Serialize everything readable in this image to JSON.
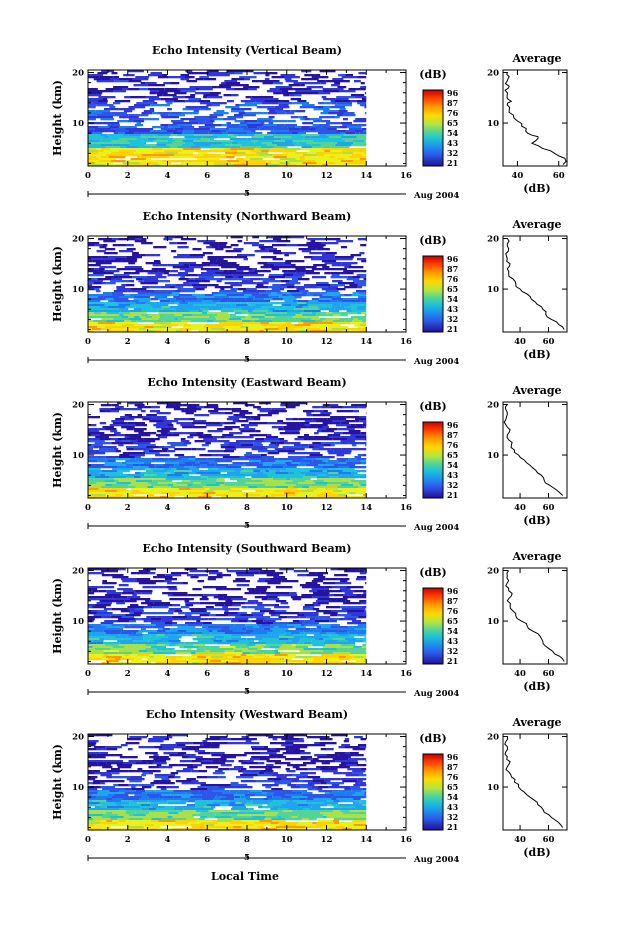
{
  "chart_data": [
    {
      "type": "heatmap",
      "title": "Echo Intensity (Vertical Beam)",
      "ylabel": "Height (km)",
      "xlabel": "",
      "y_ticks": [
        "10",
        "20"
      ],
      "x_ticks": [
        "0",
        "2",
        "4",
        "6",
        "8",
        "10",
        "12",
        "14",
        "16"
      ],
      "date_label": "Aug 2004",
      "date_tick": "5",
      "colorbar_unit": "(dB)",
      "colorbar_ticks": [
        "96",
        "87",
        "76",
        "65",
        "54",
        "43",
        "32",
        "21"
      ],
      "xlim": [
        0,
        16
      ],
      "ylim": [
        1.5,
        20.5
      ],
      "data_end_hour": 14,
      "avg_title": "Average",
      "avg_xlabel": "(dB)",
      "avg_x_ticks": [
        "40",
        "60"
      ],
      "avg_xlim": [
        33,
        64
      ],
      "avg_y_ticks": [
        "10",
        "20"
      ],
      "avg_profile": [
        [
          62,
          1.8
        ],
        [
          63,
          3
        ],
        [
          58,
          4
        ],
        [
          52,
          5
        ],
        [
          47,
          6
        ],
        [
          50,
          7
        ],
        [
          47,
          7.6
        ],
        [
          44,
          8.4
        ],
        [
          42,
          9.4
        ],
        [
          40,
          10.4
        ],
        [
          38,
          11.6
        ],
        [
          36,
          12.6
        ],
        [
          35,
          13.6
        ],
        [
          37,
          14.3
        ],
        [
          35,
          15.4
        ],
        [
          34,
          16.5
        ],
        [
          36,
          17.3
        ],
        [
          35,
          18.3
        ],
        [
          36,
          19.2
        ],
        [
          35,
          20
        ]
      ]
    },
    {
      "type": "heatmap",
      "title": "Echo Intensity (Northward Beam)",
      "ylabel": "Height (km)",
      "xlabel": "",
      "y_ticks": [
        "10",
        "20"
      ],
      "x_ticks": [
        "0",
        "2",
        "4",
        "6",
        "8",
        "10",
        "12",
        "14",
        "16"
      ],
      "date_label": "Aug 2004",
      "date_tick": "5",
      "colorbar_unit": "(dB)",
      "colorbar_ticks": [
        "96",
        "87",
        "76",
        "65",
        "54",
        "43",
        "32",
        "21"
      ],
      "xlim": [
        0,
        16
      ],
      "ylim": [
        1.5,
        20.5
      ],
      "data_end_hour": 14,
      "avg_title": "Average",
      "avg_xlabel": "(dB)",
      "avg_x_ticks": [
        "40",
        "60"
      ],
      "avg_xlim": [
        28,
        73
      ],
      "avg_y_ticks": [
        "10",
        "20"
      ],
      "avg_profile": [
        [
          71,
          2
        ],
        [
          67,
          3
        ],
        [
          62,
          4
        ],
        [
          58,
          5
        ],
        [
          56,
          6
        ],
        [
          52,
          7
        ],
        [
          48,
          8
        ],
        [
          45,
          9
        ],
        [
          40,
          10
        ],
        [
          37,
          11
        ],
        [
          35,
          12
        ],
        [
          32,
          13
        ],
        [
          31,
          14
        ],
        [
          33,
          15
        ],
        [
          31,
          16
        ],
        [
          30,
          17
        ],
        [
          32,
          18
        ],
        [
          31,
          19
        ],
        [
          31,
          20
        ]
      ]
    },
    {
      "type": "heatmap",
      "title": "Echo Intensity (Eastward Beam)",
      "ylabel": "Height (km)",
      "xlabel": "",
      "y_ticks": [
        "10",
        "20"
      ],
      "x_ticks": [
        "0",
        "2",
        "4",
        "6",
        "8",
        "10",
        "12",
        "14",
        "16"
      ],
      "date_label": "Aug 2004",
      "date_tick": "5",
      "colorbar_unit": "(dB)",
      "colorbar_ticks": [
        "96",
        "87",
        "76",
        "65",
        "54",
        "43",
        "32",
        "21"
      ],
      "xlim": [
        0,
        16
      ],
      "ylim": [
        1.5,
        20.5
      ],
      "data_end_hour": 14,
      "avg_title": "Average",
      "avg_xlabel": "(dB)",
      "avg_x_ticks": [
        "40",
        "60"
      ],
      "avg_xlim": [
        28,
        73
      ],
      "avg_y_ticks": [
        "10",
        "20"
      ],
      "avg_profile": [
        [
          70,
          2
        ],
        [
          66,
          3
        ],
        [
          61,
          4
        ],
        [
          57,
          5
        ],
        [
          55,
          6
        ],
        [
          51,
          7
        ],
        [
          47,
          8
        ],
        [
          43,
          9
        ],
        [
          39,
          10
        ],
        [
          36,
          11
        ],
        [
          34,
          12
        ],
        [
          32,
          13
        ],
        [
          31,
          14
        ],
        [
          33,
          15
        ],
        [
          30,
          16
        ],
        [
          30,
          17
        ],
        [
          31,
          18
        ],
        [
          30,
          19
        ],
        [
          31,
          20
        ]
      ]
    },
    {
      "type": "heatmap",
      "title": "Echo Intensity (Southward Beam)",
      "ylabel": "Height (km)",
      "xlabel": "",
      "y_ticks": [
        "10",
        "20"
      ],
      "x_ticks": [
        "0",
        "2",
        "4",
        "6",
        "8",
        "10",
        "12",
        "14",
        "16"
      ],
      "date_label": "Aug 2004",
      "date_tick": "5",
      "colorbar_unit": "(dB)",
      "colorbar_ticks": [
        "96",
        "87",
        "76",
        "65",
        "54",
        "43",
        "32",
        "21"
      ],
      "xlim": [
        0,
        16
      ],
      "ylim": [
        1.5,
        20.5
      ],
      "data_end_hour": 14,
      "avg_title": "Average",
      "avg_xlabel": "(dB)",
      "avg_x_ticks": [
        "40",
        "60"
      ],
      "avg_xlim": [
        28,
        73
      ],
      "avg_y_ticks": [
        "10",
        "20"
      ],
      "avg_profile": [
        [
          71,
          2
        ],
        [
          68,
          3
        ],
        [
          63,
          4
        ],
        [
          58,
          5
        ],
        [
          56,
          6
        ],
        [
          54,
          7
        ],
        [
          49,
          8
        ],
        [
          45,
          9
        ],
        [
          41,
          10
        ],
        [
          37,
          11
        ],
        [
          35,
          12
        ],
        [
          33,
          13
        ],
        [
          31,
          14
        ],
        [
          34,
          15
        ],
        [
          32,
          16
        ],
        [
          30,
          17
        ],
        [
          32,
          18
        ],
        [
          31,
          19
        ],
        [
          32,
          20
        ]
      ]
    },
    {
      "type": "heatmap",
      "title": "Echo Intensity (Westward Beam)",
      "ylabel": "Height (km)",
      "xlabel": "Local Time",
      "y_ticks": [
        "10",
        "20"
      ],
      "x_ticks": [
        "0",
        "2",
        "4",
        "6",
        "8",
        "10",
        "12",
        "14",
        "16"
      ],
      "date_label": "Aug 2004",
      "date_tick": "5",
      "colorbar_unit": "(dB)",
      "colorbar_ticks": [
        "96",
        "87",
        "76",
        "65",
        "54",
        "43",
        "32",
        "21"
      ],
      "xlim": [
        0,
        16
      ],
      "ylim": [
        1.5,
        20.5
      ],
      "data_end_hour": 14,
      "avg_title": "Average",
      "avg_xlabel": "(dB)",
      "avg_x_ticks": [
        "40",
        "60"
      ],
      "avg_xlim": [
        28,
        73
      ],
      "avg_y_ticks": [
        "10",
        "20"
      ],
      "avg_profile": [
        [
          70,
          2
        ],
        [
          67,
          3
        ],
        [
          62,
          4
        ],
        [
          57,
          5
        ],
        [
          55,
          6
        ],
        [
          52,
          7
        ],
        [
          47,
          8
        ],
        [
          43,
          9
        ],
        [
          39,
          10
        ],
        [
          36,
          11
        ],
        [
          34,
          12
        ],
        [
          32,
          13
        ],
        [
          31,
          14
        ],
        [
          33,
          15
        ],
        [
          31,
          16
        ],
        [
          30,
          17
        ],
        [
          31,
          18
        ],
        [
          30,
          19
        ],
        [
          31,
          20
        ]
      ]
    }
  ],
  "colorbar_colors": [
    "#d90000",
    "#ff4a00",
    "#ff9a00",
    "#ffd200",
    "#eaf01c",
    "#a8e04a",
    "#5ad48c",
    "#22c8c8",
    "#1fa4ef",
    "#2a73f0",
    "#3240e0",
    "#2414a0"
  ],
  "beam_colors": {
    "low": "#2414a0",
    "mid": "#1fa4ef",
    "high": "#ffd200"
  }
}
